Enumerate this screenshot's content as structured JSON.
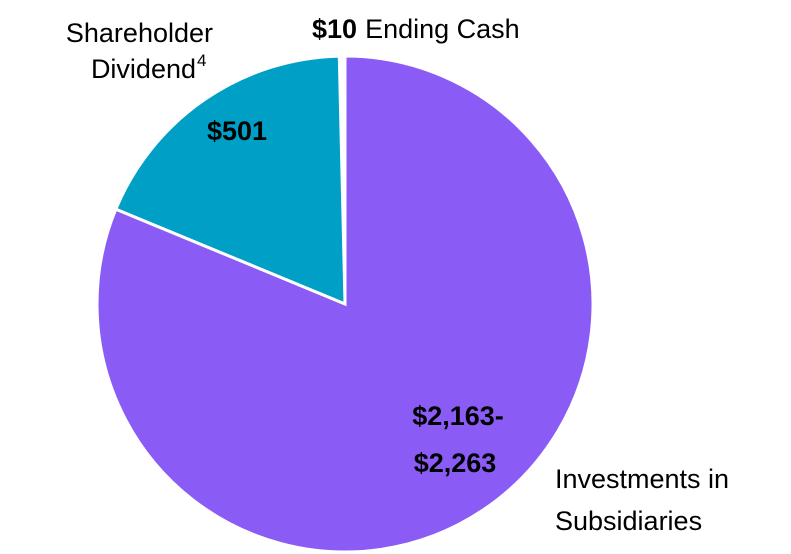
{
  "chart_data": {
    "type": "pie",
    "categories": [
      "Ending Cash",
      "Shareholder Dividend",
      "Investments in Subsidiaries"
    ],
    "dividend_footnote": "4",
    "values": [
      10,
      501,
      2213
    ],
    "value_labels": [
      "$10",
      "$501",
      "$2,163-$2,263"
    ],
    "colors": [
      "#ffffff",
      "#00a0c6",
      "#8a5cf5"
    ]
  }
}
